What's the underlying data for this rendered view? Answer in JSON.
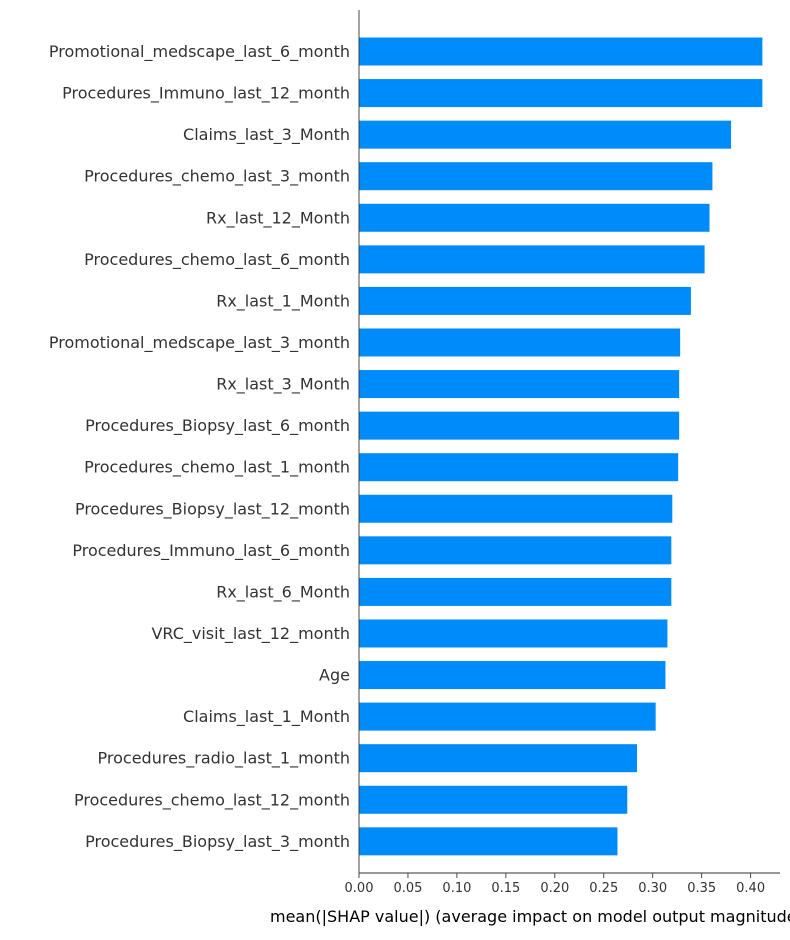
{
  "chart_data": {
    "type": "bar",
    "orientation": "horizontal",
    "bar_color": "#008bfb",
    "text_color": "#333333",
    "categories": [
      "Promotional_medscape_last_6_month",
      "Procedures_Immuno_last_12_month",
      "Claims_last_3_Month",
      "Procedures_chemo_last_3_month",
      "Rx_last_12_Month",
      "Procedures_chemo_last_6_month",
      "Rx_last_1_Month",
      "Promotional_medscape_last_3_month",
      "Rx_last_3_Month",
      "Procedures_Biopsy_last_6_month",
      "Procedures_chemo_last_1_month",
      "Procedures_Biopsy_last_12_month",
      "Procedures_Immuno_last_6_month",
      "Rx_last_6_Month",
      "VRC_visit_last_12_month",
      "Age",
      "Claims_last_1_Month",
      "Procedures_radio_last_1_month",
      "Procedures_chemo_last_12_month",
      "Procedures_Biopsy_last_3_month"
    ],
    "values": [
      0.412,
      0.412,
      0.38,
      0.361,
      0.358,
      0.353,
      0.339,
      0.328,
      0.327,
      0.327,
      0.326,
      0.32,
      0.319,
      0.319,
      0.315,
      0.313,
      0.303,
      0.284,
      0.274,
      0.264
    ],
    "xticks": [
      "0.00",
      "0.05",
      "0.10",
      "0.15",
      "0.20",
      "0.25",
      "0.30",
      "0.35",
      "0.40"
    ],
    "xlim": [
      0,
      0.43
    ],
    "xlabel": "mean(|SHAP value|) (average impact on model output magnitude)",
    "ylabel": "",
    "title": "",
    "grid": false
  }
}
